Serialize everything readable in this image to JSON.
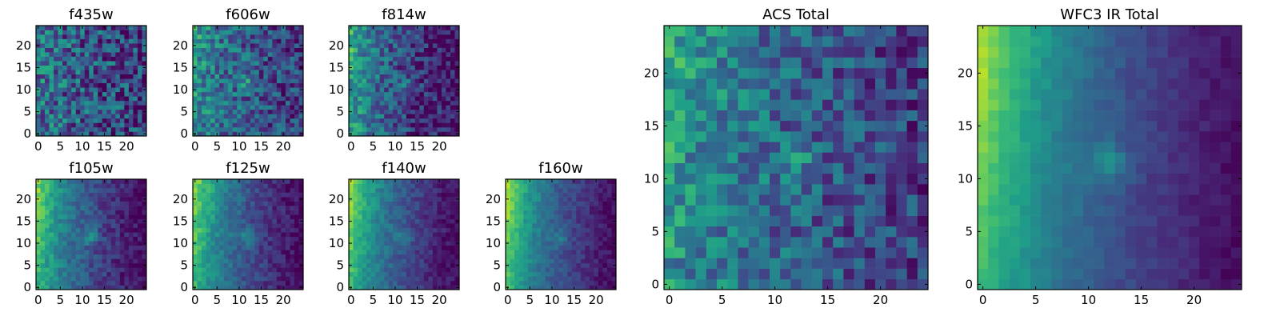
{
  "chart_data": [
    {
      "type": "heatmap",
      "title": "f435w",
      "xticks": [
        0,
        5,
        10,
        15,
        20
      ],
      "yticks": [
        0,
        5,
        10,
        15,
        20
      ],
      "xlim": [
        0,
        25
      ],
      "ylim": [
        0,
        25
      ],
      "colormap": "viridis"
    },
    {
      "type": "heatmap",
      "title": "f606w",
      "xticks": [
        0,
        5,
        10,
        15,
        20
      ],
      "yticks": [
        0,
        5,
        10,
        15,
        20
      ],
      "xlim": [
        0,
        25
      ],
      "ylim": [
        0,
        25
      ],
      "colormap": "viridis"
    },
    {
      "type": "heatmap",
      "title": "f814w",
      "xticks": [
        0,
        5,
        10,
        15,
        20
      ],
      "yticks": [
        0,
        5,
        10,
        15,
        20
      ],
      "xlim": [
        0,
        25
      ],
      "ylim": [
        0,
        25
      ],
      "colormap": "viridis"
    },
    {
      "type": "heatmap",
      "title": "f105w",
      "xticks": [
        0,
        5,
        10,
        15,
        20
      ],
      "yticks": [
        0,
        5,
        10,
        15,
        20
      ],
      "xlim": [
        0,
        25
      ],
      "ylim": [
        0,
        25
      ],
      "colormap": "viridis"
    },
    {
      "type": "heatmap",
      "title": "f125w",
      "xticks": [
        0,
        5,
        10,
        15,
        20
      ],
      "yticks": [
        0,
        5,
        10,
        15,
        20
      ],
      "xlim": [
        0,
        25
      ],
      "ylim": [
        0,
        25
      ],
      "colormap": "viridis"
    },
    {
      "type": "heatmap",
      "title": "f140w",
      "xticks": [
        0,
        5,
        10,
        15,
        20
      ],
      "yticks": [
        0,
        5,
        10,
        15,
        20
      ],
      "xlim": [
        0,
        25
      ],
      "ylim": [
        0,
        25
      ],
      "colormap": "viridis"
    },
    {
      "type": "heatmap",
      "title": "f160w",
      "xticks": [
        0,
        5,
        10,
        15,
        20
      ],
      "yticks": [
        0,
        5,
        10,
        15,
        20
      ],
      "xlim": [
        0,
        25
      ],
      "ylim": [
        0,
        25
      ],
      "colormap": "viridis"
    },
    {
      "type": "heatmap",
      "title": "ACS Total",
      "xticks": [
        0,
        5,
        10,
        15,
        20
      ],
      "yticks": [
        0,
        5,
        10,
        15,
        20
      ],
      "xlim": [
        0,
        25
      ],
      "ylim": [
        0,
        25
      ],
      "colormap": "viridis"
    },
    {
      "type": "heatmap",
      "title": "WFC3 IR Total",
      "xticks": [
        0,
        5,
        10,
        15,
        20
      ],
      "yticks": [
        0,
        5,
        10,
        15,
        20
      ],
      "xlim": [
        0,
        25
      ],
      "ylim": [
        0,
        25
      ],
      "colormap": "viridis"
    }
  ]
}
